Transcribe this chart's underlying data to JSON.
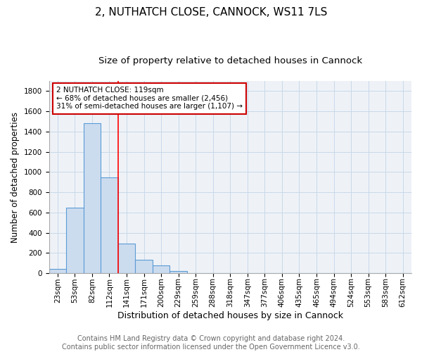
{
  "title1": "2, NUTHATCH CLOSE, CANNOCK, WS11 7LS",
  "title2": "Size of property relative to detached houses in Cannock",
  "xlabel": "Distribution of detached houses by size in Cannock",
  "ylabel": "Number of detached properties",
  "categories": [
    "23sqm",
    "53sqm",
    "82sqm",
    "112sqm",
    "141sqm",
    "171sqm",
    "200sqm",
    "229sqm",
    "259sqm",
    "288sqm",
    "318sqm",
    "347sqm",
    "377sqm",
    "406sqm",
    "435sqm",
    "465sqm",
    "494sqm",
    "524sqm",
    "553sqm",
    "583sqm",
    "612sqm"
  ],
  "bar_heights": [
    40,
    650,
    1480,
    950,
    290,
    130,
    75,
    20,
    0,
    0,
    0,
    0,
    0,
    0,
    0,
    0,
    0,
    0,
    0,
    0,
    0
  ],
  "bar_color": "#ccdcef",
  "bar_edge_color": "#5b9bd5",
  "bar_edge_width": 0.8,
  "ylim": [
    0,
    1900
  ],
  "yticks": [
    0,
    200,
    400,
    600,
    800,
    1000,
    1200,
    1400,
    1600,
    1800
  ],
  "red_line_x": 3.5,
  "annotation_text": "2 NUTHATCH CLOSE: 119sqm\n← 68% of detached houses are smaller (2,456)\n31% of semi-detached houses are larger (1,107) →",
  "annotation_box_color": "#ffffff",
  "annotation_box_edge_color": "#cc0000",
  "footnote": "Contains HM Land Registry data © Crown copyright and database right 2024.\nContains public sector information licensed under the Open Government Licence v3.0.",
  "grid_color": "#c8d8e8",
  "background_color": "#eef2f7",
  "title1_fontsize": 11,
  "title2_fontsize": 9.5,
  "xlabel_fontsize": 9,
  "ylabel_fontsize": 8.5,
  "tick_fontsize": 7.5,
  "footnote_fontsize": 7,
  "annotation_fontsize": 7.5
}
